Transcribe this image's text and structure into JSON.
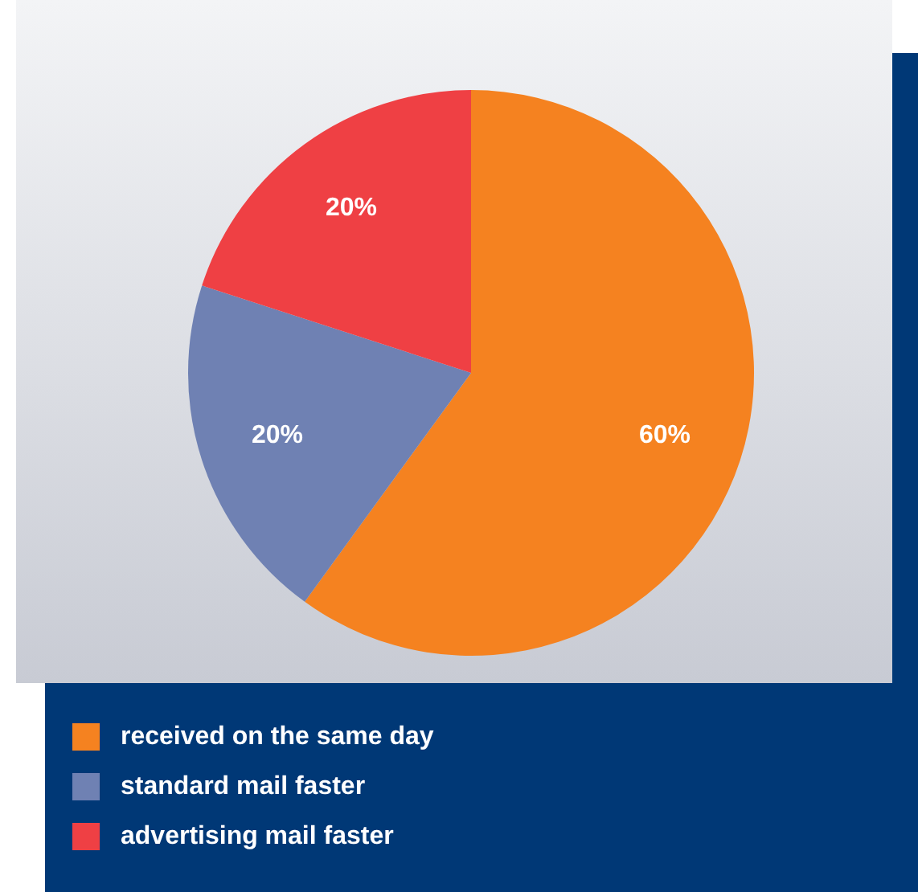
{
  "chart_data": {
    "type": "pie",
    "categories": [
      "received on the same day",
      "standard mail faster",
      "advertising mail faster"
    ],
    "values": [
      60,
      20,
      20
    ],
    "colors": [
      "#f58220",
      "#6f81b3",
      "#ef4044"
    ],
    "value_labels": [
      "60%",
      "20%",
      "20%"
    ],
    "legend": "bottom"
  }
}
